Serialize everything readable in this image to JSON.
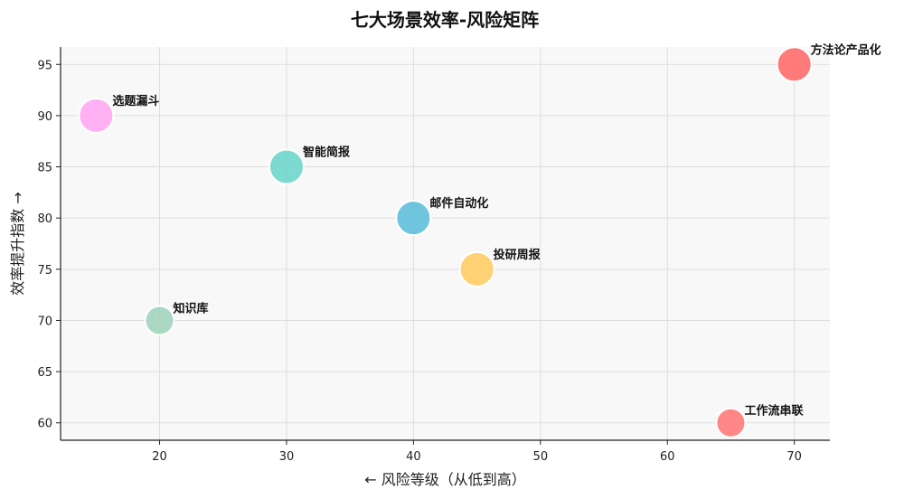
{
  "chart_data": {
    "type": "scatter",
    "title": "七大场景效率-风险矩阵",
    "xlabel": "← 风险等级（从低到高）",
    "ylabel": "效率提升指数 →",
    "xlim": [
      12.2,
      72.8
    ],
    "ylim": [
      58.3,
      96.7
    ],
    "xticks": [
      20,
      30,
      40,
      50,
      60,
      70
    ],
    "yticks": [
      60,
      65,
      70,
      75,
      80,
      85,
      90,
      95
    ],
    "grid": true,
    "plot_background": "#f8f8f8",
    "points": [
      {
        "label": "方法论产品化",
        "x": 70,
        "y": 95,
        "color": "#ff6b6b",
        "size": 3
      },
      {
        "label": "选题漏斗",
        "x": 15,
        "y": 90,
        "color": "#ffa8f3",
        "size": 3
      },
      {
        "label": "智能简报",
        "x": 30,
        "y": 85,
        "color": "#6ed6cc",
        "size": 3
      },
      {
        "label": "邮件自动化",
        "x": 40,
        "y": 80,
        "color": "#5fbfd9",
        "size": 3
      },
      {
        "label": "投研周报",
        "x": 45,
        "y": 75,
        "color": "#ffcc66",
        "size": 3
      },
      {
        "label": "知识库",
        "x": 20,
        "y": 70,
        "color": "#a3d4bc",
        "size": 2
      },
      {
        "label": "工作流串联",
        "x": 65,
        "y": 60,
        "color": "#ff7a7a",
        "size": 2
      }
    ]
  }
}
